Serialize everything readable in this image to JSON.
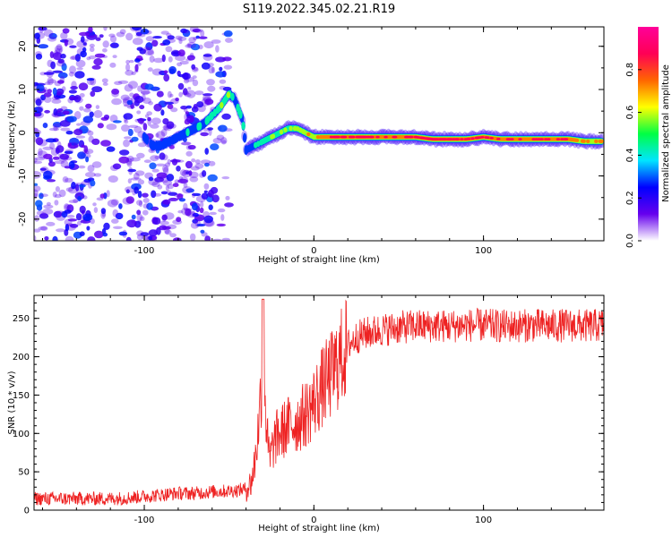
{
  "figure": {
    "title": "S119.2022.345.02.21.R19"
  },
  "colors": {
    "snr_line": "#ee2222",
    "axis": "#000000",
    "colormap": [
      "#ffffff",
      "#6600ee",
      "#0000ff",
      "#00e5ff",
      "#00ff44",
      "#ffff00",
      "#ff6600",
      "#ff0055",
      "#ff0099"
    ]
  },
  "chart_data": [
    {
      "type": "heatmap",
      "title": "",
      "xlabel": "Height of straight line (km)",
      "ylabel": "Frequency (Hz)",
      "xlim": [
        -165,
        171
      ],
      "ylim": [
        -25,
        24.5
      ],
      "xticks": [
        -100,
        0,
        100
      ],
      "xtick_labels": [
        "-100",
        "0",
        "100"
      ],
      "yticks": [
        -20,
        -10,
        0,
        10,
        20
      ],
      "ytick_labels": [
        "-20",
        "-10",
        "0",
        "10",
        "20"
      ],
      "colorbar": {
        "label": "Normalized spectral amplitude",
        "range": [
          0,
          1
        ],
        "ticks": [
          0.0,
          0.2,
          0.4,
          0.6,
          0.8
        ],
        "tick_labels": [
          "0.0",
          "0.2",
          "0.4",
          "0.6",
          "0.8"
        ]
      },
      "signal_ridge": {
        "x": [
          -100,
          -95,
          -90,
          -85,
          -80,
          -75,
          -70,
          -65,
          -60,
          -55,
          -50,
          -47,
          -45,
          -42,
          -40,
          -35,
          -30,
          -25,
          -20,
          -15,
          -10,
          -5,
          0,
          10,
          20,
          30,
          40,
          50,
          60,
          70,
          80,
          90,
          100,
          110,
          120,
          130,
          140,
          150,
          160,
          170
        ],
        "y": [
          -1,
          -3,
          -3,
          -2,
          -1,
          0,
          1,
          2,
          4,
          6,
          9,
          8,
          6,
          3,
          -4,
          -3,
          -2,
          -1,
          0,
          1,
          1,
          0,
          -1,
          -1,
          -1,
          -1,
          -1,
          -1,
          -1,
          -1.5,
          -1.5,
          -1.5,
          -1,
          -1.5,
          -1.5,
          -1.5,
          -1.5,
          -1.5,
          -2,
          -2
        ],
        "amplitude": [
          0.25,
          0.3,
          0.3,
          0.3,
          0.3,
          0.35,
          0.35,
          0.4,
          0.45,
          0.5,
          0.5,
          0.45,
          0.45,
          0.4,
          0.3,
          0.35,
          0.45,
          0.5,
          0.5,
          0.55,
          0.55,
          0.6,
          0.7,
          0.8,
          0.85,
          0.85,
          0.8,
          0.8,
          0.85,
          0.9,
          0.9,
          0.85,
          0.85,
          0.8,
          0.8,
          0.85,
          0.85,
          0.8,
          0.7,
          0.65
        ]
      },
      "noise_region": {
        "xlim": [
          -165,
          -50
        ],
        "ylim": [
          -25,
          24.5
        ],
        "amplitude": [
          0.05,
          0.3
        ]
      }
    },
    {
      "type": "line",
      "title": "",
      "xlabel": "Height of straight line (km)",
      "ylabel": "SNR (10 * v/v)",
      "xlim": [
        -165,
        171
      ],
      "ylim": [
        0,
        280
      ],
      "xticks": [
        -100,
        0,
        100
      ],
      "xtick_labels": [
        "-100",
        "0",
        "100"
      ],
      "yticks": [
        0,
        50,
        100,
        150,
        200,
        250
      ],
      "ytick_labels": [
        "0",
        "50",
        "100",
        "150",
        "200",
        "250"
      ],
      "series": [
        {
          "x": [
            -165,
            -150,
            -140,
            -130,
            -120,
            -110,
            -100,
            -90,
            -80,
            -70,
            -60,
            -50,
            -45,
            -40,
            -37,
            -35,
            -33,
            -31,
            -30,
            -29,
            -28,
            -27,
            -26,
            -25,
            -24,
            -22,
            -20,
            -15,
            -10,
            -5,
            0,
            5,
            10,
            15,
            20,
            25,
            30,
            40,
            50,
            60,
            70,
            80,
            90,
            100,
            110,
            120,
            130,
            140,
            150,
            160,
            171
          ],
          "y": [
            15,
            15,
            15,
            15,
            15,
            16,
            18,
            20,
            22,
            22,
            24,
            25,
            26,
            28,
            35,
            60,
            100,
            160,
            230,
            170,
            110,
            80,
            65,
            75,
            85,
            95,
            100,
            110,
            115,
            125,
            140,
            160,
            175,
            195,
            215,
            225,
            230,
            235,
            238,
            240,
            240,
            240,
            241,
            241,
            240,
            240,
            241,
            240,
            241,
            240,
            241
          ]
        }
      ]
    }
  ]
}
